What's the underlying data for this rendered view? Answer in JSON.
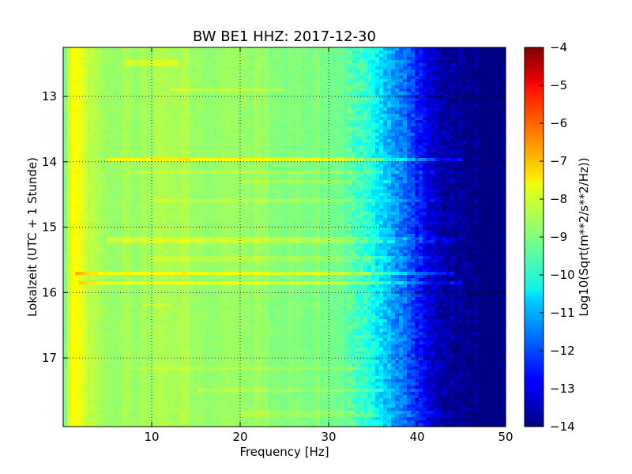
{
  "chart_data": {
    "type": "heatmap",
    "title": "BW BE1 HHZ: 2017-12-30",
    "xlabel": "Frequency [Hz]",
    "ylabel": "Lokalzeit (UTC + 1 Stunde)",
    "xlim": [
      0,
      50
    ],
    "ylim": [
      12.25,
      18.05
    ],
    "y_inverted": true,
    "x_ticks": [
      10,
      20,
      30,
      40,
      50
    ],
    "y_ticks": [
      13,
      14,
      15,
      16,
      17
    ],
    "grid": true,
    "colormap": "jet",
    "colorbar": {
      "label": "Log10(Sqrt(m**2/s**2/Hz))",
      "range": [
        -14,
        -4
      ],
      "ticks": [
        -4,
        -5,
        -6,
        -7,
        -8,
        -9,
        -10,
        -11,
        -12,
        -13,
        -14
      ]
    },
    "spectrum_profile": {
      "frequency_hz": [
        0,
        0.5,
        1,
        2,
        3,
        5,
        8,
        10,
        12,
        14,
        16,
        18,
        20,
        22,
        25,
        28,
        30,
        32,
        33,
        34,
        35,
        36,
        37,
        38,
        39,
        40,
        41,
        42,
        43,
        44,
        45,
        46,
        50
      ],
      "level": [
        -9.6,
        -8.3,
        -7.7,
        -8.0,
        -8.4,
        -8.7,
        -8.7,
        -8.6,
        -8.6,
        -8.6,
        -8.7,
        -8.7,
        -8.7,
        -8.8,
        -8.9,
        -9.0,
        -9.1,
        -9.3,
        -9.5,
        -9.8,
        -10.2,
        -10.6,
        -11.0,
        -11.4,
        -11.9,
        -12.4,
        -12.9,
        -13.3,
        -13.6,
        -13.8,
        -13.95,
        -14.0,
        -14.0
      ]
    },
    "horizontal_bands": [
      {
        "time_h": 12.5,
        "f_start": 7,
        "f_end": 13,
        "delta": 0.5
      },
      {
        "time_h": 12.9,
        "f_start": 12,
        "f_end": 25,
        "delta": 0.4
      },
      {
        "time_h": 13.97,
        "f_start": 5,
        "f_end": 45,
        "delta": 1.0
      },
      {
        "time_h": 14.15,
        "f_start": 8,
        "f_end": 42,
        "delta": 0.3
      },
      {
        "time_h": 14.3,
        "f_start": 20,
        "f_end": 42,
        "delta": 0.3
      },
      {
        "time_h": 14.6,
        "f_start": 10,
        "f_end": 43,
        "delta": 0.4
      },
      {
        "time_h": 15.2,
        "f_start": 5,
        "f_end": 44,
        "delta": 0.5
      },
      {
        "time_h": 15.5,
        "f_start": 10,
        "f_end": 43,
        "delta": 0.3
      },
      {
        "time_h": 15.7,
        "f_start": 1.5,
        "f_end": 44,
        "delta": 0.9
      },
      {
        "time_h": 15.85,
        "f_start": 2,
        "f_end": 45,
        "delta": 0.8
      },
      {
        "time_h": 16.2,
        "f_start": 9,
        "f_end": 12,
        "delta": 0.3
      },
      {
        "time_h": 17.15,
        "f_start": 8,
        "f_end": 35,
        "delta": 0.3
      },
      {
        "time_h": 17.5,
        "f_start": 15,
        "f_end": 40,
        "delta": 0.3
      },
      {
        "time_h": 17.85,
        "f_start": 20,
        "f_end": 44,
        "delta": 0.3
      }
    ]
  }
}
